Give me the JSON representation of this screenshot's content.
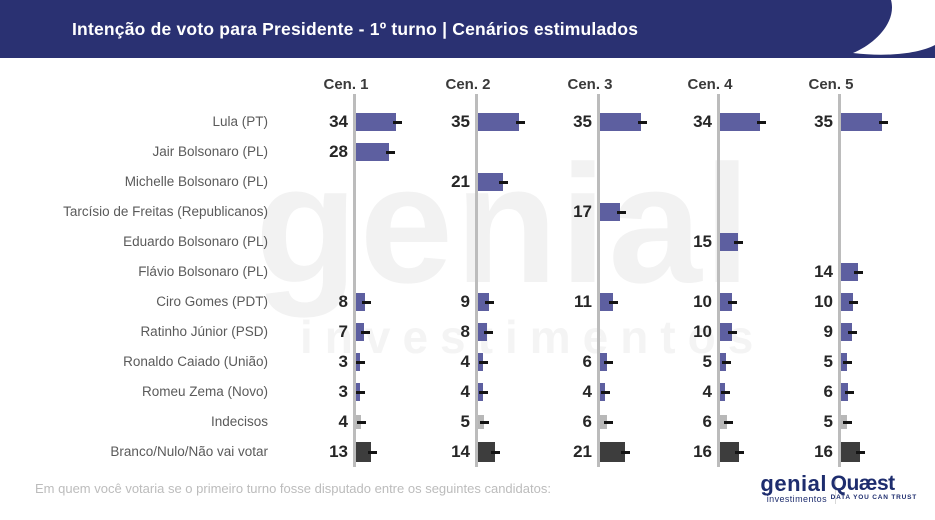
{
  "header": {
    "title": "Intenção de voto para Presidente - 1º turno | Cenários estimulados"
  },
  "chart_data": {
    "type": "bar",
    "orientation": "horizontal",
    "grid": false,
    "scenario_headers": [
      "Cen. 1",
      "Cen. 2",
      "Cen. 3",
      "Cen. 4",
      "Cen. 5"
    ],
    "rows": [
      {
        "label": "Lula (PT)",
        "kind": "candidate",
        "values": [
          34,
          35,
          35,
          34,
          35
        ]
      },
      {
        "label": "Jair Bolsonaro (PL)",
        "kind": "candidate",
        "values": [
          28,
          null,
          null,
          null,
          null
        ]
      },
      {
        "label": "Michelle Bolsonaro (PL)",
        "kind": "candidate",
        "values": [
          null,
          21,
          null,
          null,
          null
        ]
      },
      {
        "label": "Tarcísio de Freitas (Republicanos)",
        "kind": "candidate",
        "values": [
          null,
          null,
          17,
          null,
          null
        ]
      },
      {
        "label": "Eduardo Bolsonaro (PL)",
        "kind": "candidate",
        "values": [
          null,
          null,
          null,
          15,
          null
        ]
      },
      {
        "label": "Flávio Bolsonaro (PL)",
        "kind": "candidate",
        "values": [
          null,
          null,
          null,
          null,
          14
        ]
      },
      {
        "label": "Ciro Gomes (PDT)",
        "kind": "candidate",
        "values": [
          8,
          9,
          11,
          10,
          10
        ]
      },
      {
        "label": "Ratinho Júnior (PSD)",
        "kind": "candidate",
        "values": [
          7,
          8,
          null,
          10,
          9
        ]
      },
      {
        "label": "Ronaldo Caiado (União)",
        "kind": "candidate",
        "values": [
          3,
          4,
          6,
          5,
          5
        ]
      },
      {
        "label": "Romeu Zema (Novo)",
        "kind": "candidate",
        "values": [
          3,
          4,
          4,
          4,
          6
        ]
      },
      {
        "label": "Indecisos",
        "kind": "undecided",
        "values": [
          4,
          5,
          6,
          6,
          5
        ]
      },
      {
        "label": "Branco/Nulo/Não vai votar",
        "kind": "blank",
        "values": [
          13,
          14,
          21,
          16,
          16
        ]
      }
    ],
    "colors": {
      "candidate": "#5d5fa0",
      "undecided": "#b8b8b8",
      "blank": "#3d3d3d",
      "axis": "#bcbcbc",
      "marker": "#141414",
      "banner": "#2a3172"
    }
  },
  "watermark": {
    "line1": "genial",
    "line2": "investimentos"
  },
  "footer": {
    "question": "Em quem você votaria se o primeiro turno fosse disputado entre os seguintes candidatos:"
  },
  "logos": {
    "genial": {
      "word": "genial",
      "sub": "investimentos"
    },
    "quaest": {
      "word": "Quæst",
      "sub": "DATA YOU CAN TRUST"
    }
  }
}
